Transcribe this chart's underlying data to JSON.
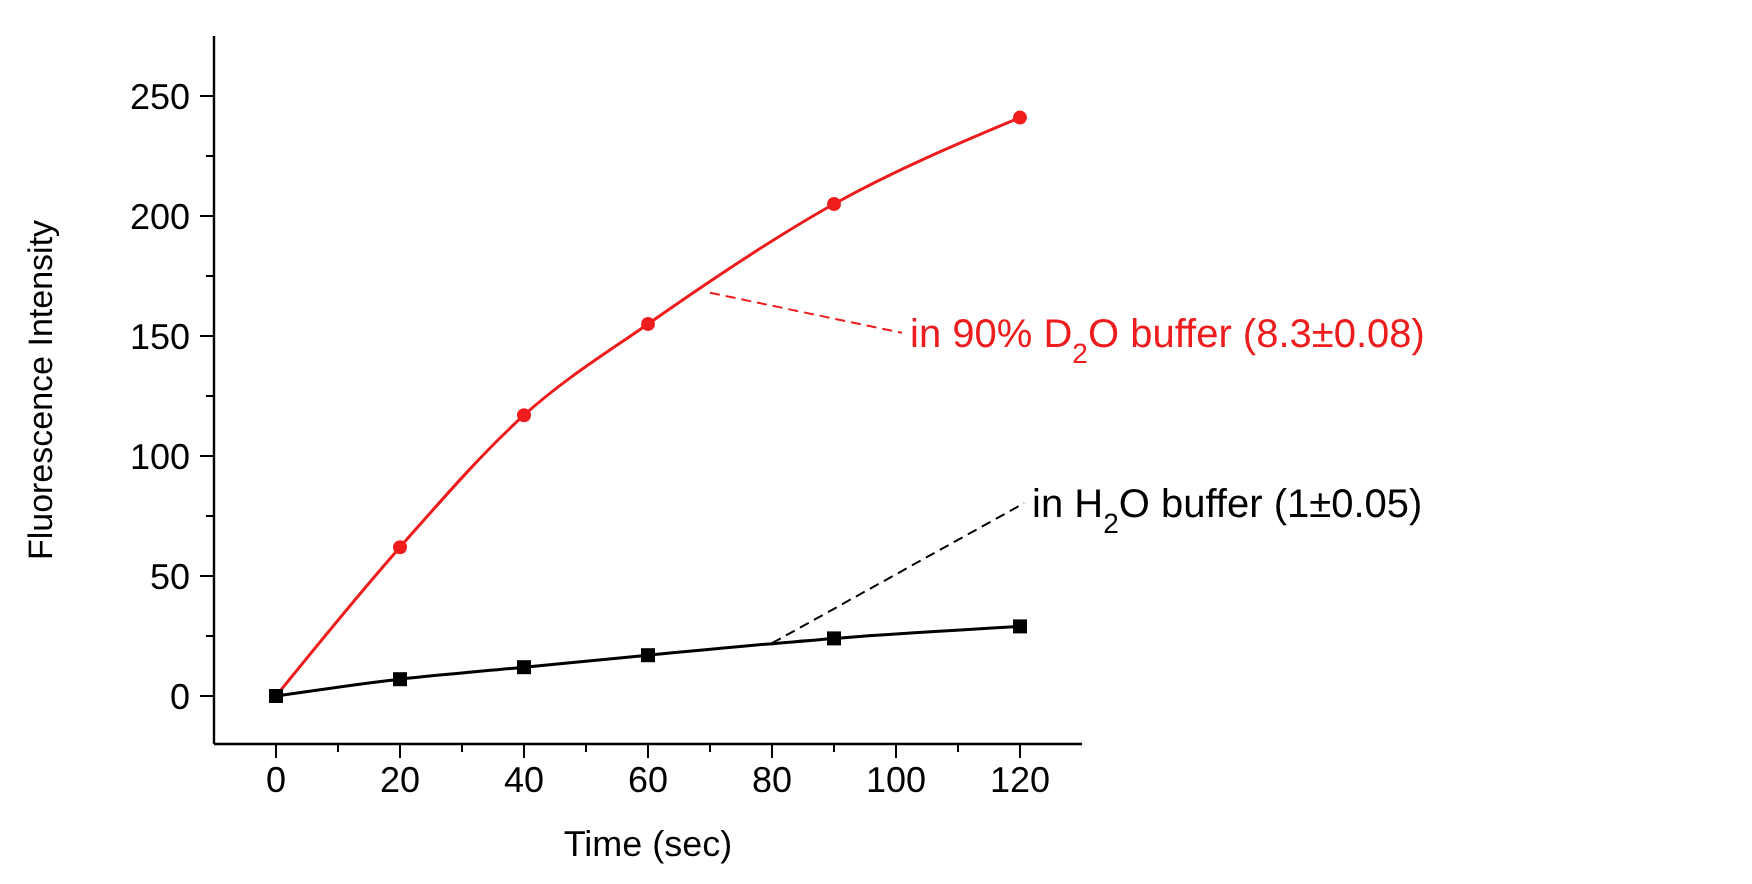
{
  "chart_data": {
    "type": "line",
    "xlabel": "Time (sec)",
    "ylabel": "Fluorescence Intensity",
    "x": [
      0,
      20,
      40,
      60,
      90,
      120
    ],
    "series": [
      {
        "color": "#ee1c1c",
        "marker": "circle",
        "values": [
          0,
          62,
          117,
          155,
          205,
          241
        ]
      },
      {
        "color": "#000000",
        "marker": "square",
        "values": [
          0,
          7,
          12,
          17,
          24,
          29
        ]
      }
    ],
    "xlim": [
      -10,
      130
    ],
    "xticks": [
      0,
      {
        "value": 10,
        "label": null
      },
      20,
      {
        "value": 30,
        "label": null
      },
      40,
      {
        "value": 50,
        "label": null
      },
      60,
      {
        "value": 70,
        "label": null
      },
      80,
      {
        "value": 90,
        "label": null
      },
      100,
      {
        "value": 110,
        "label": null
      },
      120
    ],
    "ylim": [
      -20,
      275
    ],
    "yticks": [
      0,
      {
        "value": 25,
        "label": null
      },
      50,
      {
        "value": 75,
        "label": null
      },
      100,
      {
        "value": 125,
        "label": null
      },
      150,
      {
        "value": 175,
        "label": null
      },
      200,
      {
        "value": 225,
        "label": null
      },
      250
    ],
    "annotations": [
      {
        "text": "in 90% D$_{2}$O buffer (8.3±0.08)",
        "x": 70,
        "y": 168
      },
      {
        "text": "in H$_{2}$O buffer (1±0.05)",
        "x": 80,
        "y": 22
      }
    ],
    "grid": false,
    "line_style": "solid"
  }
}
